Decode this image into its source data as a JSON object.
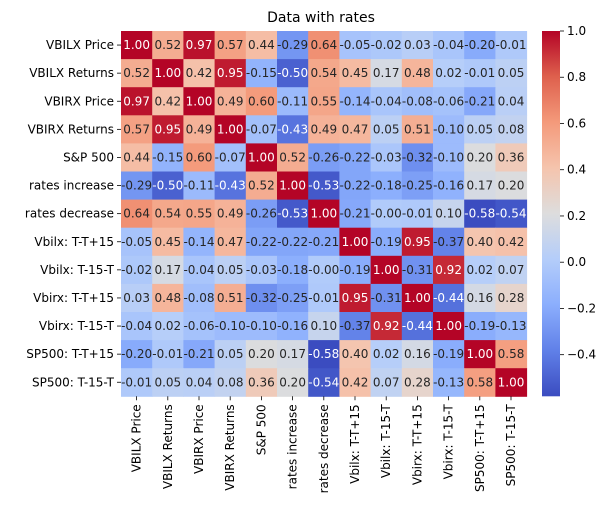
{
  "chart_data": {
    "type": "heatmap",
    "title": "Data with rates",
    "labels": [
      "VBILX Price",
      "VBILX Returns",
      "VBIRX Price",
      "VBIRX Returns",
      "S&P 500",
      "rates increase",
      "rates decrease",
      "Vbilx: T-T+15",
      "Vbilx: T-15-T",
      "Vbirx: T-T+15",
      "Vbirx: T-15-T",
      "SP500: T-T+15",
      "SP500: T-15-T"
    ],
    "annotations": [
      [
        "1.00",
        "0.52",
        "0.97",
        "0.57",
        "0.44",
        "-0.29",
        "0.64",
        "-0.05",
        "-0.02",
        "0.03",
        "-0.04",
        "-0.20",
        "-0.01"
      ],
      [
        "0.52",
        "1.00",
        "0.42",
        "0.95",
        "-0.15",
        "-0.50",
        "0.54",
        "0.45",
        "0.17",
        "0.48",
        "0.02",
        "-0.01",
        "0.05"
      ],
      [
        "0.97",
        "0.42",
        "1.00",
        "0.49",
        "0.60",
        "-0.11",
        "0.55",
        "-0.14",
        "-0.04",
        "-0.08",
        "-0.06",
        "-0.21",
        "0.04"
      ],
      [
        "0.57",
        "0.95",
        "0.49",
        "1.00",
        "-0.07",
        "-0.43",
        "0.49",
        "0.47",
        "0.05",
        "0.51",
        "-0.10",
        "0.05",
        "0.08"
      ],
      [
        "0.44",
        "-0.15",
        "0.60",
        "-0.07",
        "1.00",
        "0.52",
        "-0.26",
        "-0.22",
        "-0.03",
        "-0.32",
        "-0.10",
        "0.20",
        "0.36"
      ],
      [
        "-0.29",
        "-0.50",
        "-0.11",
        "-0.43",
        "0.52",
        "1.00",
        "-0.53",
        "-0.22",
        "-0.18",
        "-0.25",
        "-0.16",
        "0.17",
        "0.20"
      ],
      [
        "0.64",
        "0.54",
        "0.55",
        "0.49",
        "-0.26",
        "-0.53",
        "1.00",
        "-0.21",
        "-0.00",
        "-0.01",
        "0.10",
        "-0.58",
        "-0.54"
      ],
      [
        "-0.05",
        "0.45",
        "-0.14",
        "0.47",
        "-0.22",
        "-0.22",
        "-0.21",
        "1.00",
        "-0.19",
        "0.95",
        "-0.37",
        "0.40",
        "0.42"
      ],
      [
        "-0.02",
        "0.17",
        "-0.04",
        "0.05",
        "-0.03",
        "-0.18",
        "-0.00",
        "-0.19",
        "1.00",
        "-0.31",
        "0.92",
        "0.02",
        "0.07"
      ],
      [
        "0.03",
        "0.48",
        "-0.08",
        "0.51",
        "-0.32",
        "-0.25",
        "-0.01",
        "0.95",
        "-0.31",
        "1.00",
        "-0.44",
        "0.16",
        "0.28"
      ],
      [
        "-0.04",
        "0.02",
        "-0.06",
        "-0.10",
        "-0.10",
        "-0.16",
        "0.10",
        "-0.37",
        "0.92",
        "-0.44",
        "1.00",
        "-0.19",
        "-0.13"
      ],
      [
        "-0.20",
        "-0.01",
        "-0.21",
        "0.05",
        "0.20",
        "0.17",
        "-0.58",
        "0.40",
        "0.02",
        "0.16",
        "-0.19",
        "1.00",
        "0.58"
      ],
      [
        "-0.01",
        "0.05",
        "0.04",
        "0.08",
        "0.36",
        "0.20",
        "-0.54",
        "0.42",
        "0.07",
        "0.28",
        "-0.13",
        "0.58",
        "1.00"
      ]
    ],
    "colormap": "coolwarm",
    "value_range": [
      -0.58,
      1.0
    ],
    "colorbar": {
      "ticks": [
        -0.4,
        -0.2,
        0.0,
        0.2,
        0.4,
        0.6,
        0.8,
        1.0
      ],
      "tick_labels": [
        "−0.4",
        "−0.2",
        "0.0",
        "0.2",
        "0.4",
        "0.6",
        "0.8",
        "1.0"
      ]
    },
    "xlabel": "",
    "ylabel": ""
  }
}
